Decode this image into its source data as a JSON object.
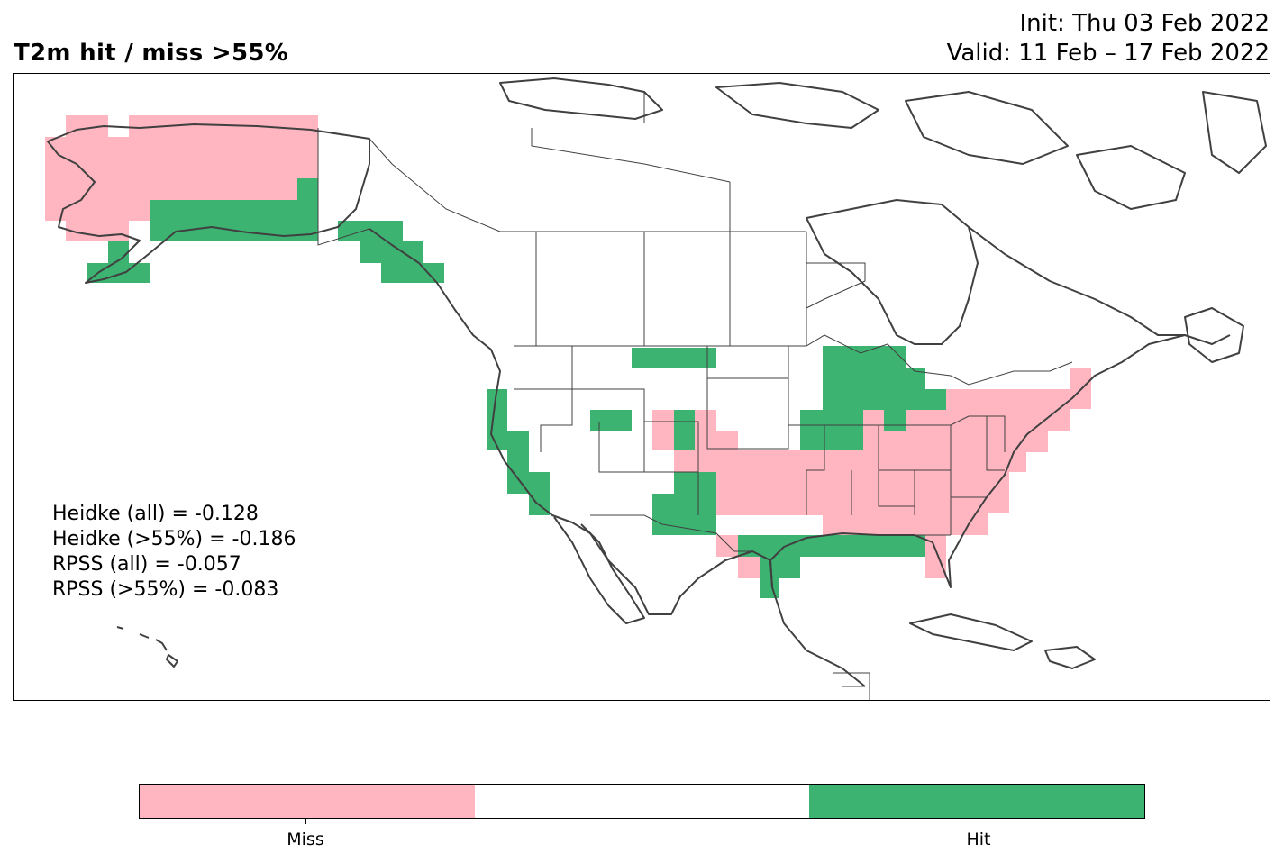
{
  "title": {
    "main": "T2m hit / miss  >55%",
    "init": "Init: Thu 03 Feb 2022",
    "valid": "Valid: 11 Feb – 17 Feb 2022"
  },
  "stats": {
    "heidke_all": "Heidke (all) = -0.128",
    "heidke_55": "Heidke (>55%) = -0.186",
    "rpss_all": "RPSS (all) = -0.057",
    "rpss_55": "RPSS (>55%) = -0.083"
  },
  "colors": {
    "miss": "#ffb6c1",
    "neutral": "#ffffff",
    "hit": "#3cb371",
    "coast": "#404040",
    "border": "#404040"
  },
  "colorbar": {
    "labels": [
      "Miss",
      "Hit"
    ],
    "segments": [
      "miss",
      "neutral",
      "hit"
    ]
  }
}
